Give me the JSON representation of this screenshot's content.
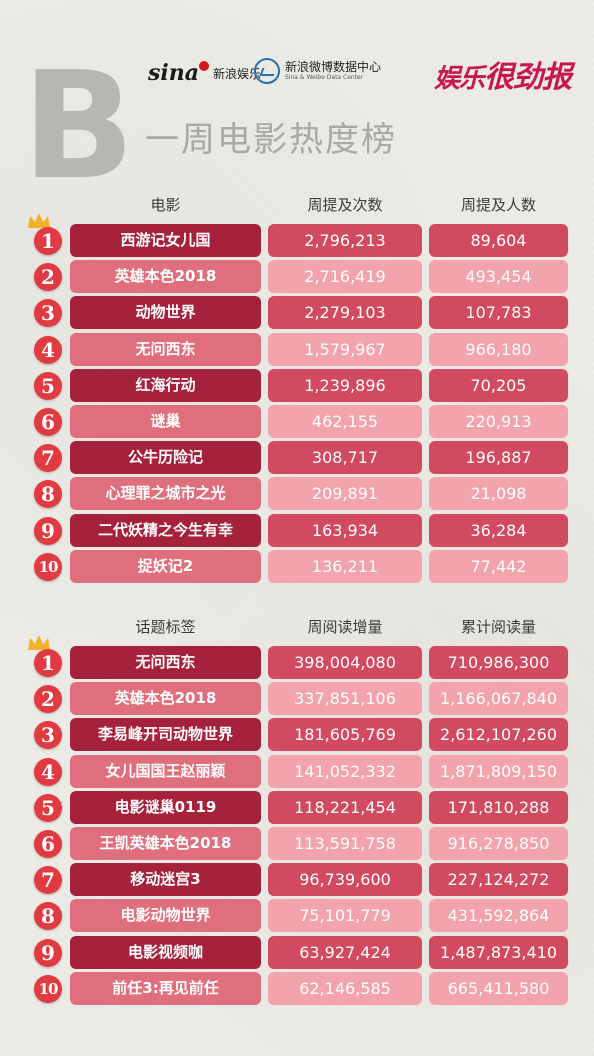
{
  "header": {
    "letter": "B",
    "title": "一周电影热度榜",
    "sina_word": "sina",
    "sina_label": "新浪娱乐",
    "weibo_label": "新浪微博数据中心",
    "weibo_sub": "Sina & Weibo Data Center",
    "brand_part1": "娱乐",
    "brand_part2": "很劲报"
  },
  "colors": {
    "dark_name": "#a6213c",
    "dark_value": "#d24a60",
    "light_name": "#df6f7c",
    "light_value": "#f2a3ab",
    "badge": "#e13a41",
    "brand": "#c6174f"
  },
  "movies": {
    "headers": [
      "电影",
      "周提及次数",
      "周提及人数"
    ],
    "rows": [
      {
        "rank": "1",
        "name": "西游记女儿国",
        "v1": "2,796,213",
        "v2": "89,604"
      },
      {
        "rank": "2",
        "name": "英雄本色2018",
        "v1": "2,716,419",
        "v2": "493,454"
      },
      {
        "rank": "3",
        "name": "动物世界",
        "v1": "2,279,103",
        "v2": "107,783"
      },
      {
        "rank": "4",
        "name": "无问西东",
        "v1": "1,579,967",
        "v2": "966,180"
      },
      {
        "rank": "5",
        "name": "红海行动",
        "v1": "1,239,896",
        "v2": "70,205"
      },
      {
        "rank": "6",
        "name": "谜巢",
        "v1": "462,155",
        "v2": "220,913"
      },
      {
        "rank": "7",
        "name": "公牛历险记",
        "v1": "308,717",
        "v2": "196,887"
      },
      {
        "rank": "8",
        "name": "心理罪之城市之光",
        "v1": "209,891",
        "v2": "21,098"
      },
      {
        "rank": "9",
        "name": "二代妖精之今生有幸",
        "v1": "163,934",
        "v2": "36,284"
      },
      {
        "rank": "10",
        "name": "捉妖记2",
        "v1": "136,211",
        "v2": "77,442"
      }
    ]
  },
  "topics": {
    "headers": [
      "话题标签",
      "周阅读增量",
      "累计阅读量"
    ],
    "rows": [
      {
        "rank": "1",
        "name": "无问西东",
        "v1": "398,004,080",
        "v2": "710,986,300"
      },
      {
        "rank": "2",
        "name": "英雄本色2018",
        "v1": "337,851,106",
        "v2": "1,166,067,840"
      },
      {
        "rank": "3",
        "name": "李易峰开司动物世界",
        "v1": "181,605,769",
        "v2": "2,612,107,260"
      },
      {
        "rank": "4",
        "name": "女儿国国王赵丽颖",
        "v1": "141,052,332",
        "v2": "1,871,809,150"
      },
      {
        "rank": "5",
        "name": "电影谜巢0119",
        "v1": "118,221,454",
        "v2": "171,810,288"
      },
      {
        "rank": "6",
        "name": "王凯英雄本色2018",
        "v1": "113,591,758",
        "v2": "916,278,850"
      },
      {
        "rank": "7",
        "name": "移动迷宫3",
        "v1": "96,739,600",
        "v2": "227,124,272"
      },
      {
        "rank": "8",
        "name": "电影动物世界",
        "v1": "75,101,779",
        "v2": "431,592,864"
      },
      {
        "rank": "9",
        "name": "电影视频咖",
        "v1": "63,927,424",
        "v2": "1,487,873,410"
      },
      {
        "rank": "10",
        "name": "前任3:再见前任",
        "v1": "62,146,585",
        "v2": "665,411,580"
      }
    ]
  }
}
